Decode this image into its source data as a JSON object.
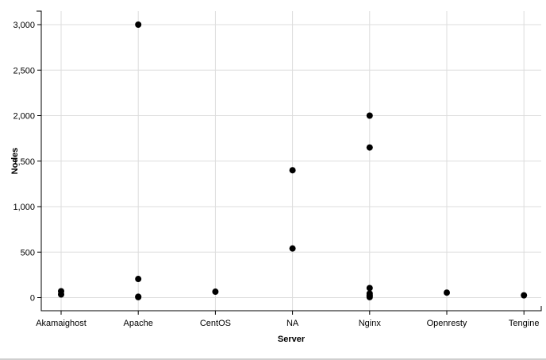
{
  "chart_data": {
    "type": "scatter",
    "xlabel": "Server",
    "ylabel": "Nodes",
    "categories": [
      "Akamaighost",
      "Apache",
      "CentOS",
      "NA",
      "Nginx",
      "Openresty",
      "Tengine"
    ],
    "ylim": [
      -150,
      3150
    ],
    "yticks": [
      0,
      500,
      1000,
      1500,
      2000,
      2500,
      3000
    ],
    "ytick_labels": [
      "0",
      "500",
      "1,000",
      "1,500",
      "2,000",
      "2,500",
      "3,000"
    ],
    "grid": true,
    "marker_color": "#000000",
    "points": [
      {
        "x": "Akamaighost",
        "y": 70
      },
      {
        "x": "Akamaighost",
        "y": 35
      },
      {
        "x": "Apache",
        "y": 3000
      },
      {
        "x": "Apache",
        "y": 205
      },
      {
        "x": "Apache",
        "y": 10
      },
      {
        "x": "Apache",
        "y": 5
      },
      {
        "x": "CentOS",
        "y": 65
      },
      {
        "x": "NA",
        "y": 1400
      },
      {
        "x": "NA",
        "y": 540
      },
      {
        "x": "Nginx",
        "y": 2000
      },
      {
        "x": "Nginx",
        "y": 1650
      },
      {
        "x": "Nginx",
        "y": 105
      },
      {
        "x": "Nginx",
        "y": 45
      },
      {
        "x": "Nginx",
        "y": 30
      },
      {
        "x": "Nginx",
        "y": 15
      },
      {
        "x": "Nginx",
        "y": 5
      },
      {
        "x": "Openresty",
        "y": 55
      },
      {
        "x": "Tengine",
        "y": 25
      }
    ]
  }
}
